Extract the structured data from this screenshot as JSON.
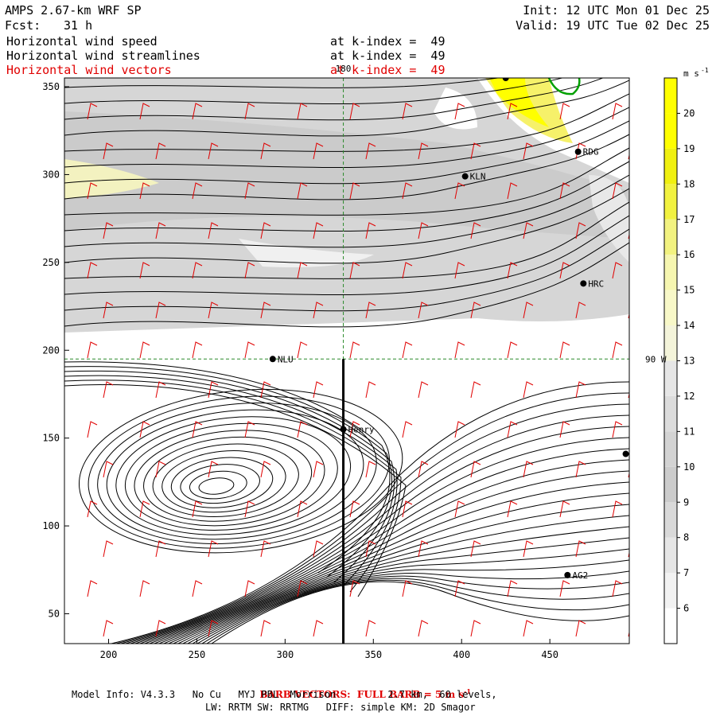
{
  "header": {
    "model": "AMPS 2.67-km WRF SP",
    "init": "Init: 12 UTC Mon 01 Dec 25",
    "fcst_label": "Fcst:",
    "fcst_value": "31 h",
    "valid": "Valid: 19 UTC Tue 02 Dec 25",
    "fields": [
      {
        "name": "Horizontal wind speed",
        "level": "at k-index =  49"
      },
      {
        "name": "Horizontal wind streamlines",
        "level": "at k-index =  49"
      },
      {
        "name": "Horizontal wind vectors",
        "level": "at k-index =  49"
      }
    ]
  },
  "footer": {
    "barb_note": "BARB VECTORS:  FULL BARB = 5 m s",
    "barb_exp": "-1",
    "model_info": "Model Info: V4.3.3   No Cu   MYJ PBL  Morrison         2.7 km,  60 levels,",
    "model_info2": "LW: RRTM SW: RRTMG   DIFF: simple KM: 2D Smagor"
  },
  "colors": {
    "barb": "#e00000",
    "streamline": "#000000",
    "grid": "#2a8a2a",
    "coast": "#00a000"
  },
  "chart_data": {
    "type": "heatmap",
    "title": "Horizontal wind speed",
    "xlim": [
      175,
      495
    ],
    "ylim": [
      33,
      355
    ],
    "xticks": [
      200,
      250,
      300,
      350,
      400,
      450
    ],
    "yticks": [
      50,
      100,
      150,
      200,
      250,
      300,
      350
    ],
    "colorbar": {
      "unit": "m s",
      "unit_exp": "-1",
      "levels": [
        6,
        7,
        8,
        9,
        10,
        11,
        12,
        13,
        14,
        15,
        16,
        17,
        18,
        19,
        20
      ],
      "colors": [
        "#ffffff",
        "#f2f2f2",
        "#e6e6e6",
        "#d9d9d9",
        "#cccccc",
        "#d3d3d3",
        "#dcdcdc",
        "#e6e6e6",
        "#f4f4da",
        "#f8f8c8",
        "#f6f6b0",
        "#f2f280",
        "#f2f240",
        "#f0f010",
        "#ffff00",
        "#ffff00"
      ]
    },
    "grid_labels": [
      {
        "text": "180",
        "x": 333,
        "y": 355
      },
      {
        "text": "90 W",
        "x": 495,
        "y": 195
      }
    ],
    "stations": [
      {
        "name": "RDG",
        "x": 466,
        "y": 313
      },
      {
        "name": "KLN",
        "x": 402,
        "y": 299
      },
      {
        "name": "HRC",
        "x": 469,
        "y": 238
      },
      {
        "name": "NLU",
        "x": 293,
        "y": 195
      },
      {
        "name": "Henry",
        "x": 333,
        "y": 155
      },
      {
        "name": "AG2",
        "x": 460,
        "y": 72
      },
      {
        "name": "",
        "x": 493,
        "y": 141
      },
      {
        "name": "",
        "x": 425,
        "y": 355
      }
    ],
    "vortex_center": {
      "x": 260,
      "y": 122
    }
  }
}
